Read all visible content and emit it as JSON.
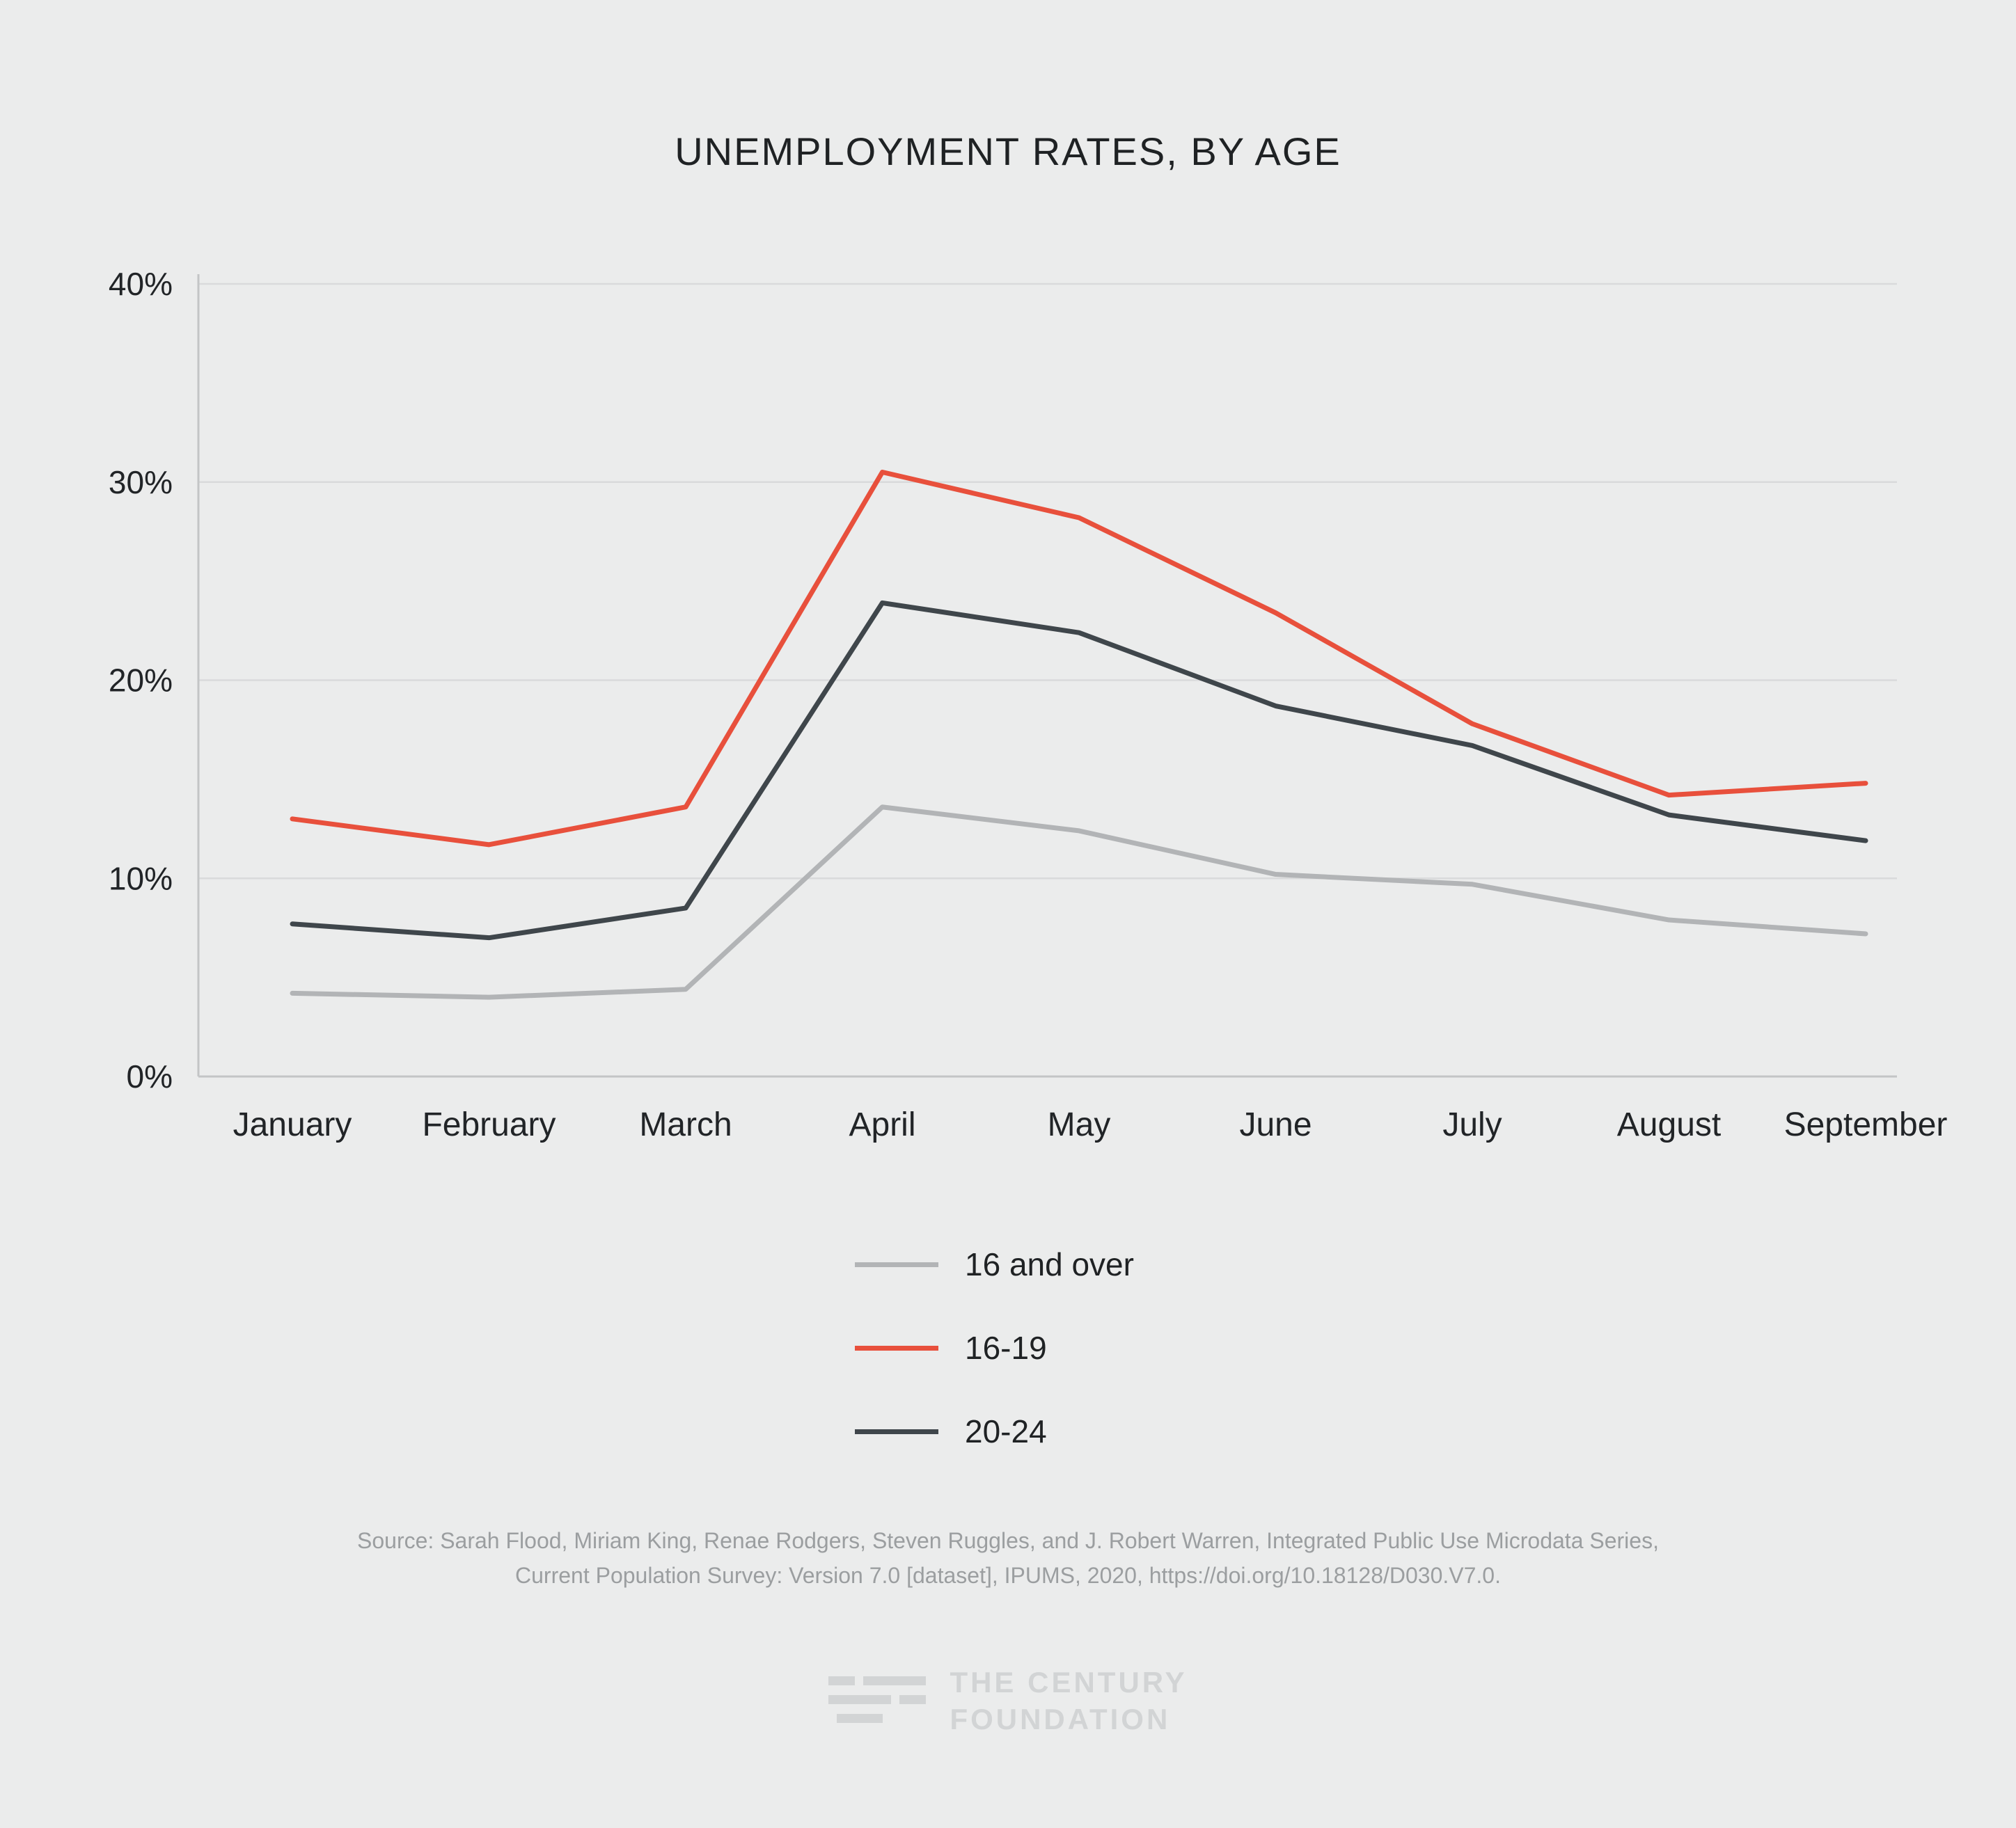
{
  "title": "UNEMPLOYMENT RATES, BY AGE",
  "chart_data": {
    "type": "line",
    "title": "UNEMPLOYMENT RATES, BY AGE",
    "categories": [
      "January",
      "February",
      "March",
      "April",
      "May",
      "June",
      "July",
      "August",
      "September"
    ],
    "series": [
      {
        "name": "16 and over",
        "color": "#b2b4b6",
        "values": [
          4.2,
          4.0,
          4.4,
          13.6,
          12.4,
          10.2,
          9.7,
          7.9,
          7.2
        ]
      },
      {
        "name": "16-19",
        "color": "#e8503c",
        "values": [
          13.0,
          11.7,
          13.6,
          30.5,
          28.2,
          23.4,
          17.8,
          14.2,
          14.8
        ]
      },
      {
        "name": "20-24",
        "color": "#3f464b",
        "values": [
          7.7,
          7.0,
          8.5,
          23.9,
          22.4,
          18.7,
          16.7,
          13.2,
          11.9
        ]
      }
    ],
    "ylim": [
      0,
      40
    ],
    "yticks": [
      {
        "value": 0,
        "label": "0%"
      },
      {
        "value": 10,
        "label": "10%"
      },
      {
        "value": 20,
        "label": "20%"
      },
      {
        "value": 30,
        "label": "30%"
      },
      {
        "value": 40,
        "label": "40%"
      }
    ],
    "xlabel": "",
    "ylabel": "",
    "grid": true,
    "legend_position": "bottom-center",
    "colors": {
      "grid": "#d9dadb",
      "axis": "#c3c5c6",
      "tick_text": "#212427",
      "background": "#ebecec"
    }
  },
  "source": {
    "line1": "Source: Sarah Flood, Miriam King, Renae Rodgers, Steven Ruggles, and J. Robert Warren, Integrated Public Use Microdata Series,",
    "line2": "Current Population Survey: Version 7.0 [dataset], IPUMS, 2020, https://doi.org/10.18128/D030.V7.0."
  },
  "logo": {
    "line1": "THE CENTURY",
    "line2": "FOUNDATION"
  }
}
